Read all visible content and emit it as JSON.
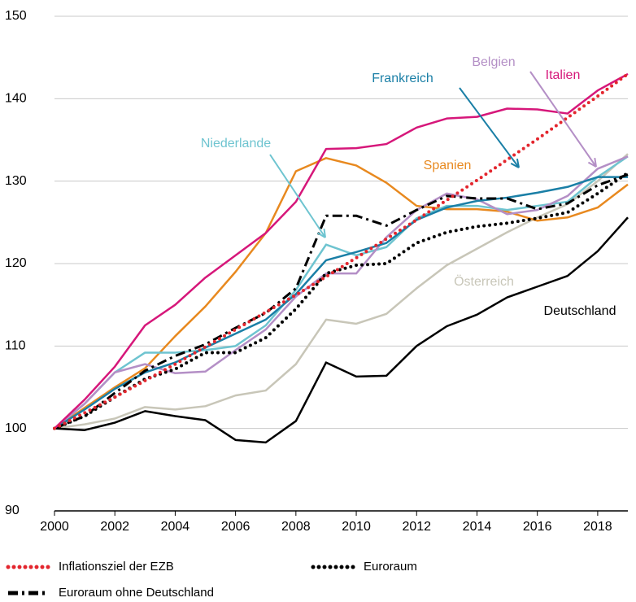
{
  "chart_data": {
    "type": "line",
    "x": [
      2000,
      2001,
      2002,
      2003,
      2004,
      2005,
      2006,
      2007,
      2008,
      2009,
      2010,
      2011,
      2012,
      2013,
      2014,
      2015,
      2016,
      2017,
      2018,
      2019
    ],
    "xlim": [
      2000,
      2019
    ],
    "xticks": [
      2000,
      2002,
      2004,
      2006,
      2008,
      2010,
      2012,
      2014,
      2016,
      2018
    ],
    "ylim": [
      90,
      150
    ],
    "yticks": [
      90,
      100,
      110,
      120,
      130,
      140,
      150
    ],
    "grid": true,
    "series": [
      {
        "name": "Italien",
        "color": "#d6177a",
        "style": "solid",
        "values": [
          100,
          103.5,
          107.5,
          112.5,
          115,
          118.3,
          121,
          123.7,
          127.5,
          133.9,
          134,
          134.5,
          136.5,
          137.6,
          137.8,
          138.8,
          138.7,
          138.2,
          141,
          143
        ]
      },
      {
        "name": "Inflationsziel der EZB",
        "color": "#e3262e",
        "style": "dotted",
        "legend": true,
        "values": [
          100,
          101.9,
          103.8,
          105.8,
          107.8,
          109.9,
          112,
          114.1,
          116.2,
          118.4,
          120.7,
          123,
          125.3,
          127.7,
          130.1,
          132.6,
          135.1,
          137.7,
          140.3,
          143
        ]
      },
      {
        "name": "Spanien",
        "color": "#e8891f",
        "style": "solid",
        "values": [
          100,
          102.5,
          105,
          107.3,
          111.2,
          114.8,
          119,
          123.7,
          131.2,
          132.8,
          131.9,
          129.8,
          127,
          126.6,
          126.6,
          126.3,
          125.2,
          125.6,
          126.8,
          129.6
        ]
      },
      {
        "name": "Niederlande",
        "color": "#6ec4d0",
        "style": "solid",
        "values": [
          100,
          103,
          106.8,
          109.2,
          109.2,
          109.5,
          110,
          112.5,
          116.8,
          122.3,
          121,
          122,
          125.5,
          127,
          127,
          126.5,
          127,
          127.5,
          130.5,
          133
        ]
      },
      {
        "name": "Frankreich",
        "color": "#1a7fa6",
        "style": "solid",
        "values": [
          100,
          102.3,
          104.8,
          106.8,
          108,
          109.8,
          111.5,
          113.2,
          116.3,
          120.4,
          121.4,
          122.5,
          125.3,
          126.8,
          127.6,
          128,
          128.6,
          129.3,
          130.5,
          130.5
        ]
      },
      {
        "name": "Belgien",
        "color": "#b48fc6",
        "style": "solid",
        "values": [
          100,
          103,
          106.8,
          107.8,
          106.7,
          106.9,
          109.5,
          112,
          116,
          118.8,
          118.8,
          123.2,
          126.5,
          128.5,
          127.8,
          126,
          126.5,
          128.2,
          131.5,
          133
        ]
      },
      {
        "name": "Österreich",
        "color": "#c8c6b8",
        "style": "solid",
        "values": [
          100,
          100.5,
          101.2,
          102.6,
          102.3,
          102.7,
          104,
          104.6,
          107.8,
          113.2,
          112.7,
          113.9,
          117,
          119.8,
          121.8,
          123.8,
          125.6,
          127.2,
          130,
          133.3
        ]
      },
      {
        "name": "Deutschland",
        "color": "#000000",
        "style": "solid",
        "values": [
          100,
          99.8,
          100.7,
          102.1,
          101.5,
          101,
          98.6,
          98.3,
          100.9,
          108,
          106.3,
          106.4,
          110,
          112.4,
          113.8,
          115.9,
          117.2,
          118.5,
          121.5,
          125.6
        ]
      },
      {
        "name": "Euroraum",
        "color": "#000000",
        "style": "dotted",
        "legend": true,
        "values": [
          100,
          101.5,
          103.8,
          106,
          107.2,
          109.2,
          109.2,
          111,
          114.5,
          118.8,
          119.8,
          120,
          122.5,
          123.8,
          124.5,
          124.9,
          125.5,
          126.2,
          128.5,
          131
        ]
      },
      {
        "name": "Euroraum ohne Deutschland",
        "color": "#000000",
        "style": "dashdot",
        "legend": true,
        "values": [
          100,
          101.5,
          104.3,
          107,
          108.8,
          110.2,
          112.2,
          114,
          117,
          125.8,
          125.8,
          124.6,
          126.5,
          128.2,
          127.9,
          127.9,
          126.6,
          127.3,
          129.5,
          130.8
        ]
      }
    ]
  }
}
